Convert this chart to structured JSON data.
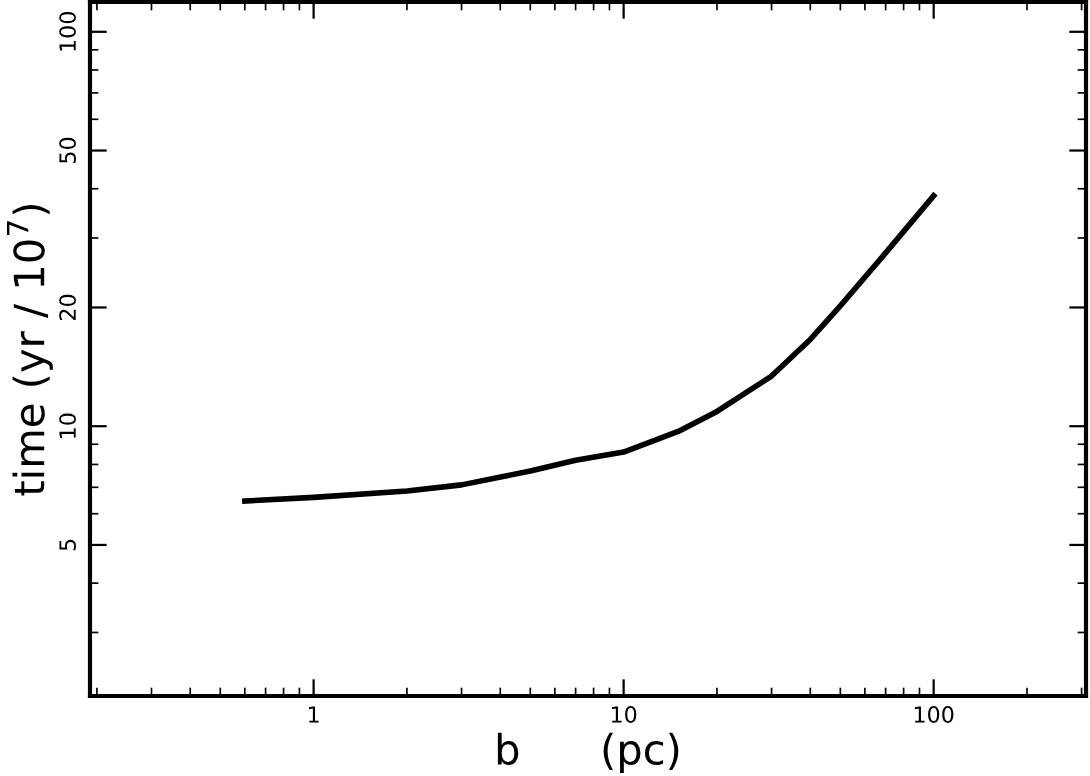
{
  "chart_data": {
    "type": "line",
    "xlabel": "b      (pc)",
    "ylabel": "time (yr / 10$^{7}$)",
    "log": "xy",
    "xlim": [
      0.19,
      310
    ],
    "ylim": [
      2.07,
      119
    ],
    "xticks": [
      1,
      10,
      100
    ],
    "yticks": [
      5,
      10,
      20,
      50,
      100
    ],
    "x": [
      0.6,
      1,
      2,
      3,
      5,
      7,
      10,
      15,
      20,
      30,
      40,
      50,
      70,
      100
    ],
    "series": [
      {
        "color": "#000000",
        "values": [
          6.46,
          6.6,
          6.85,
          7.1,
          7.7,
          8.2,
          8.6,
          9.7,
          10.9,
          13.4,
          16.6,
          20.2,
          27.5,
          38.4
        ]
      }
    ],
    "grid": false,
    "legend": false,
    "marker": "none",
    "line_style": "solid"
  }
}
